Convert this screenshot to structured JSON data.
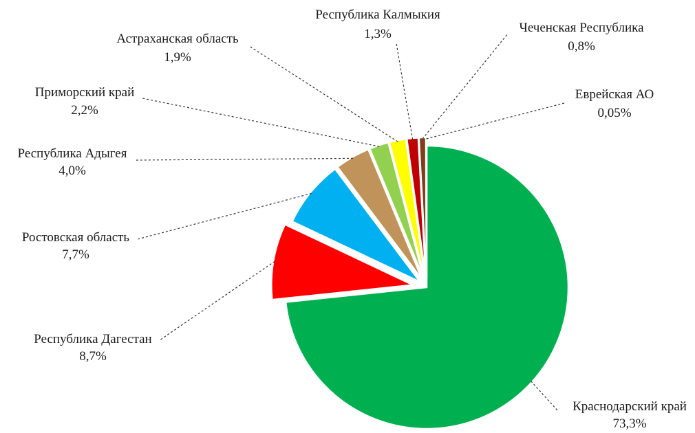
{
  "chart_data": {
    "type": "pie",
    "title": "",
    "slices": [
      {
        "label": "Краснодарский край",
        "value_text": "73,3%",
        "value": 73.3,
        "color": "#00B050"
      },
      {
        "label": "Республика Дагестан",
        "value_text": "8,7%",
        "value": 8.7,
        "color": "#FF0000"
      },
      {
        "label": "Ростовская область",
        "value_text": "7,7%",
        "value": 7.7,
        "color": "#00B0F0"
      },
      {
        "label": "Республика Адыгея",
        "value_text": "4,0%",
        "value": 4.0,
        "color": "#C0935A"
      },
      {
        "label": "Приморский край",
        "value_text": "2,2%",
        "value": 2.2,
        "color": "#92D050"
      },
      {
        "label": "Астраханская область",
        "value_text": "1,9%",
        "value": 1.9,
        "color": "#FFFF00"
      },
      {
        "label": "Республика Калмыкия",
        "value_text": "1,3%",
        "value": 1.3,
        "color": "#C00000"
      },
      {
        "label": "Чеченская Республика",
        "value_text": "0,8%",
        "value": 0.8,
        "color": "#7F3F1A"
      },
      {
        "label": "Еврейская АО",
        "value_text": "0,05%",
        "value": 0.05,
        "color": "#4F2A10"
      }
    ],
    "legend": "none",
    "data_labels": "outside-with-dashed-leader-lines"
  }
}
